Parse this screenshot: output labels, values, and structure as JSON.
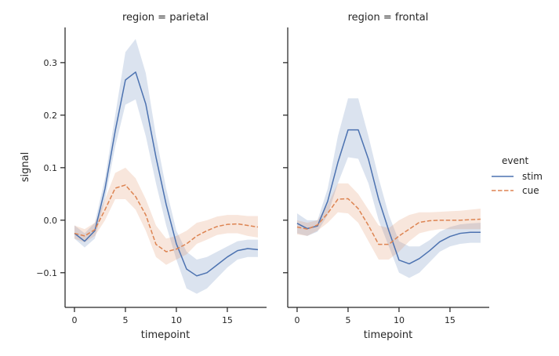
{
  "chart_data": {
    "type": "line",
    "xlabel": "timepoint",
    "ylabel": "signal",
    "ylim": [
      -0.166,
      0.367
    ],
    "xlim": [
      -0.92,
      18.85
    ],
    "yticks": [
      -0.1,
      0.0,
      0.1,
      0.2,
      0.3
    ],
    "ytick_labels": [
      "−0.1",
      "0.0",
      "0.1",
      "0.2",
      "0.3"
    ],
    "xticks": [
      0,
      5,
      10,
      15
    ],
    "xtick_labels": [
      "0",
      "5",
      "10",
      "15"
    ],
    "grid": false,
    "legend": {
      "title": "event",
      "placement": "right",
      "entries": [
        {
          "label": "stim",
          "color": "#4c72b0",
          "dash": "solid"
        },
        {
          "label": "cue",
          "color": "#dd8452",
          "dash": "dashed"
        }
      ]
    },
    "x": [
      0,
      1,
      2,
      3,
      4,
      5,
      6,
      7,
      8,
      9,
      10,
      11,
      12,
      13,
      14,
      15,
      16,
      17,
      18
    ],
    "panels": [
      {
        "title": "region = parietal",
        "series": [
          {
            "name": "stim",
            "color": "#4c72b0",
            "values": [
              -0.025,
              -0.04,
              -0.02,
              0.06,
              0.17,
              0.267,
              0.282,
              0.221,
              0.12,
              0.03,
              -0.045,
              -0.093,
              -0.106,
              -0.1,
              -0.085,
              -0.07,
              -0.058,
              -0.054,
              -0.056
            ],
            "ci_low": [
              -0.035,
              -0.052,
              -0.035,
              0.04,
              0.14,
              0.22,
              0.23,
              0.16,
              0.07,
              -0.01,
              -0.075,
              -0.13,
              -0.14,
              -0.13,
              -0.11,
              -0.09,
              -0.075,
              -0.07,
              -0.07
            ],
            "ci_high": [
              -0.01,
              -0.025,
              -0.005,
              0.08,
              0.2,
              0.32,
              0.345,
              0.28,
              0.16,
              0.06,
              -0.02,
              -0.06,
              -0.075,
              -0.07,
              -0.06,
              -0.05,
              -0.04,
              -0.037,
              -0.037
            ]
          },
          {
            "name": "cue",
            "color": "#dd8452",
            "values": [
              -0.025,
              -0.03,
              -0.018,
              0.02,
              0.061,
              0.067,
              0.045,
              0.01,
              -0.046,
              -0.06,
              -0.055,
              -0.045,
              -0.03,
              -0.02,
              -0.012,
              -0.008,
              -0.007,
              -0.01,
              -0.013
            ],
            "ci_low": [
              -0.035,
              -0.042,
              -0.03,
              0.0,
              0.04,
              0.04,
              0.02,
              -0.02,
              -0.07,
              -0.085,
              -0.075,
              -0.065,
              -0.045,
              -0.037,
              -0.028,
              -0.025,
              -0.025,
              -0.03,
              -0.033
            ],
            "ci_high": [
              -0.01,
              -0.017,
              -0.005,
              0.04,
              0.09,
              0.1,
              0.08,
              0.04,
              -0.01,
              -0.035,
              -0.03,
              -0.02,
              -0.005,
              0.0,
              0.007,
              0.01,
              0.01,
              0.008,
              0.008
            ]
          }
        ]
      },
      {
        "title": "region = frontal",
        "series": [
          {
            "name": "stim",
            "color": "#4c72b0",
            "values": [
              -0.006,
              -0.016,
              -0.011,
              0.036,
              0.11,
              0.172,
              0.172,
              0.116,
              0.04,
              -0.02,
              -0.076,
              -0.083,
              -0.073,
              -0.058,
              -0.041,
              -0.031,
              -0.025,
              -0.023,
              -0.023
            ],
            "ci_low": [
              -0.025,
              -0.03,
              -0.022,
              0.01,
              0.07,
              0.12,
              0.117,
              0.07,
              0.0,
              -0.05,
              -0.1,
              -0.11,
              -0.1,
              -0.08,
              -0.06,
              -0.05,
              -0.045,
              -0.043,
              -0.043
            ],
            "ci_high": [
              0.013,
              0.0,
              0.0,
              0.06,
              0.16,
              0.232,
              0.232,
              0.16,
              0.08,
              0.01,
              -0.04,
              -0.05,
              -0.05,
              -0.038,
              -0.022,
              -0.013,
              -0.008,
              -0.006,
              -0.005
            ]
          },
          {
            "name": "cue",
            "color": "#dd8452",
            "values": [
              -0.013,
              -0.017,
              -0.009,
              0.013,
              0.04,
              0.041,
              0.022,
              -0.01,
              -0.046,
              -0.046,
              -0.03,
              -0.017,
              -0.004,
              -0.001,
              0.0,
              0.0,
              0.0,
              0.001,
              0.002
            ],
            "ci_low": [
              -0.027,
              -0.03,
              -0.02,
              -0.005,
              0.015,
              0.013,
              -0.005,
              -0.04,
              -0.075,
              -0.075,
              -0.06,
              -0.04,
              -0.025,
              -0.02,
              -0.017,
              -0.017,
              -0.017,
              -0.017,
              -0.017
            ],
            "ci_high": [
              0.0,
              -0.005,
              0.0,
              0.03,
              0.07,
              0.07,
              0.05,
              0.02,
              -0.01,
              -0.015,
              0.0,
              0.01,
              0.015,
              0.015,
              0.016,
              0.017,
              0.018,
              0.02,
              0.022
            ]
          }
        ]
      }
    ]
  }
}
